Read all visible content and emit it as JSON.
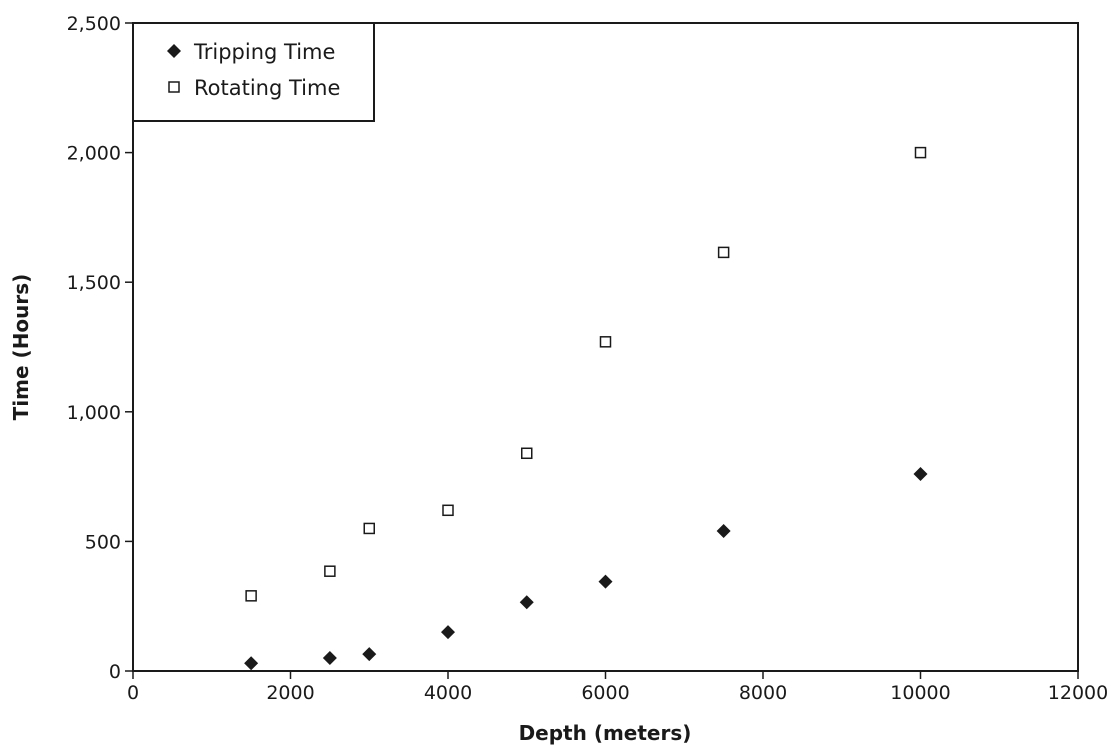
{
  "chart_data": {
    "type": "scatter",
    "title": "",
    "xlabel": "Depth (meters)",
    "ylabel": "Time (Hours)",
    "xlim": [
      0,
      12000
    ],
    "ylim": [
      0,
      2500
    ],
    "x_ticks": [
      0,
      2000,
      4000,
      6000,
      8000,
      10000,
      12000
    ],
    "x_tick_labels": [
      "0",
      "2000",
      "4000",
      "6000",
      "8000",
      "10000",
      "12000"
    ],
    "y_ticks": [
      0,
      500,
      1000,
      1500,
      2000,
      2500
    ],
    "y_tick_labels": [
      "0",
      "500",
      "1,000",
      "1,500",
      "2,000",
      "2,500"
    ],
    "grid": false,
    "legend": "top-left",
    "series": [
      {
        "name": "Tripping Time",
        "marker": "filled-diamond",
        "color": "#1a1a1a",
        "x": [
          1500,
          2500,
          3000,
          4000,
          5000,
          6000,
          7500,
          10000
        ],
        "y": [
          30,
          50,
          65,
          150,
          265,
          345,
          540,
          760
        ]
      },
      {
        "name": "Rotating Time",
        "marker": "open-square",
        "color": "#1a1a1a",
        "x": [
          1500,
          2500,
          3000,
          4000,
          5000,
          6000,
          7500,
          10000
        ],
        "y": [
          290,
          385,
          550,
          620,
          840,
          1270,
          1615,
          2000
        ]
      }
    ]
  }
}
